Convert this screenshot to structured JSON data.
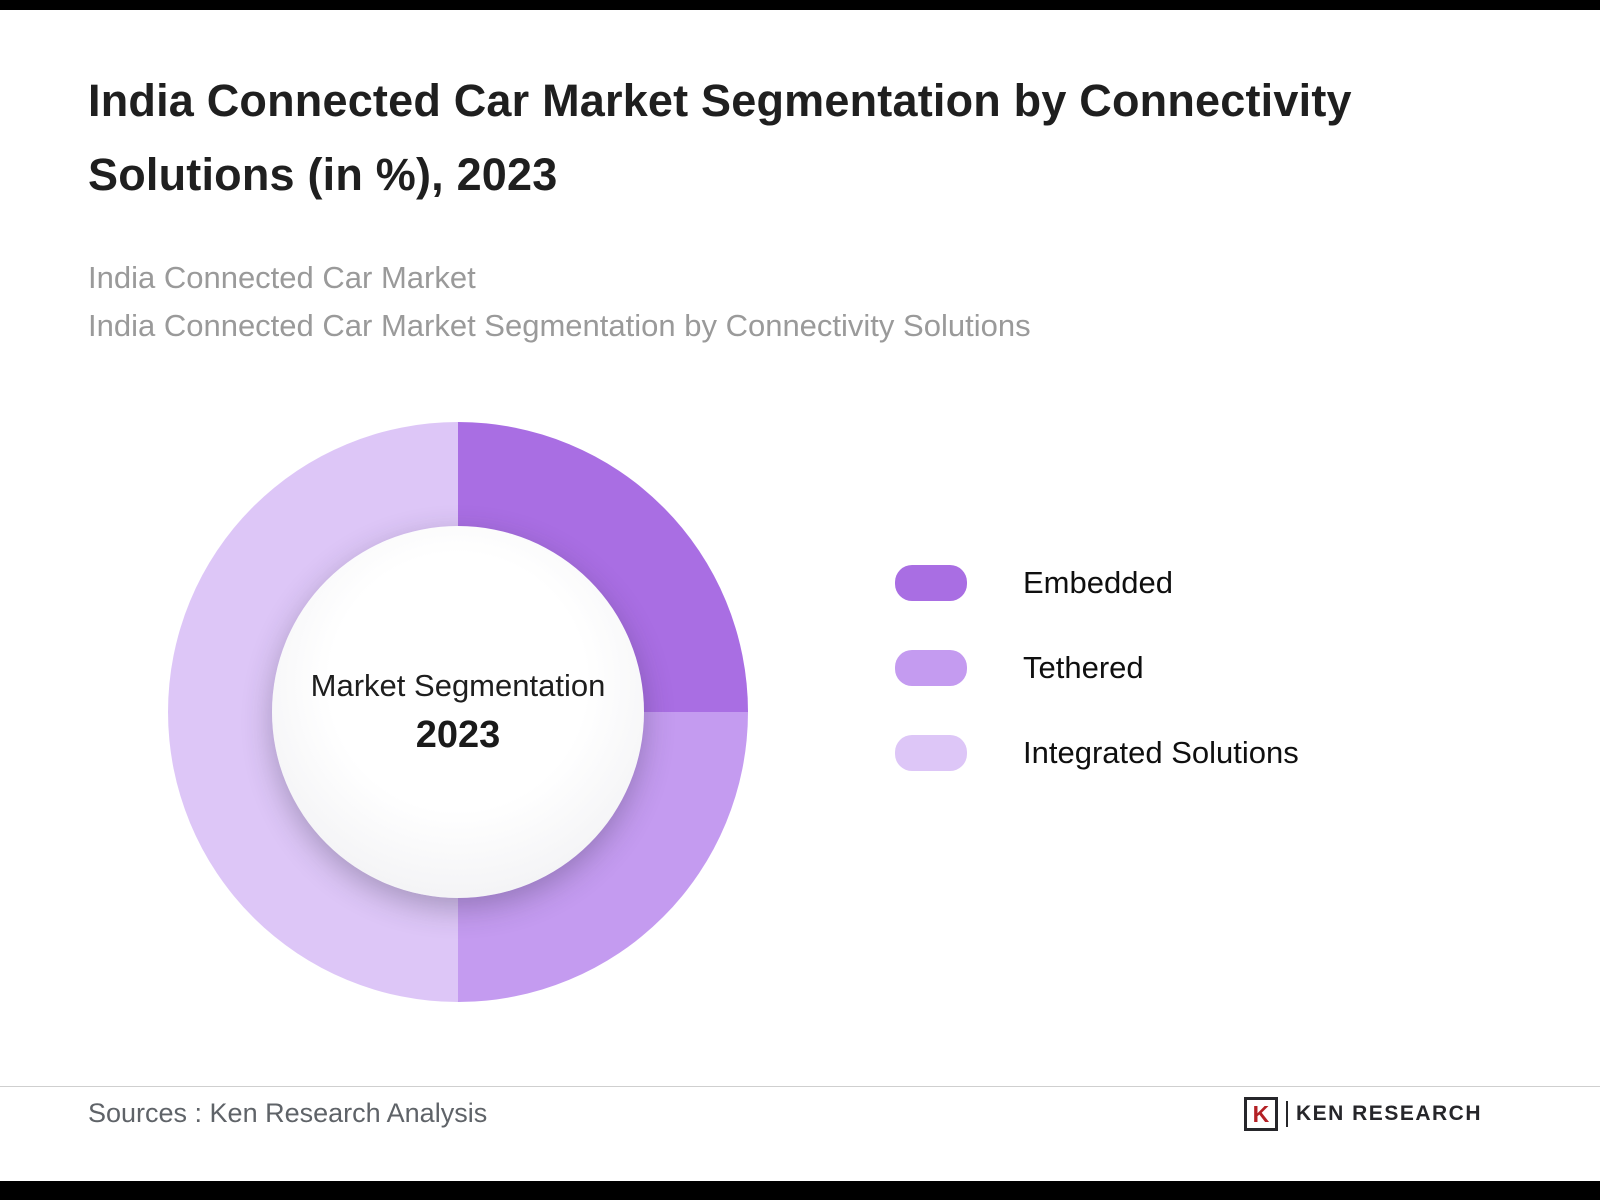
{
  "header": {
    "title_line1": "India Connected Car Market Segmentation by Connectivity",
    "title_line2": "Solutions (in %), 2023",
    "subtitle_line1": "India Connected Car Market",
    "subtitle_line2": "India Connected Car Market Segmentation by Connectivity Solutions"
  },
  "chart_data": {
    "type": "pie",
    "donut": true,
    "title": "Market Segmentation 2023",
    "center_label": "Market Segmentation",
    "center_year": "2023",
    "categories": [
      "Embedded",
      "Tethered",
      "Integrated Solutions"
    ],
    "values": [
      25,
      25,
      50
    ],
    "unit": "%",
    "colors": [
      "#a96ee3",
      "#c49bf0",
      "#ddc6f7"
    ],
    "legend_position": "right",
    "start_angle_deg": 0,
    "direction": "clockwise"
  },
  "footer": {
    "source": "Sources : Ken Research Analysis",
    "logo_letter": "K",
    "logo_text": "KEN RESEARCH"
  }
}
